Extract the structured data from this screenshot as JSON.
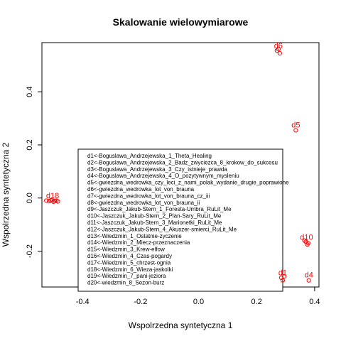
{
  "chart_data": {
    "type": "scatter",
    "title": "Skalowanie wielowymiarowe",
    "xlabel": "Wspolrzedna syntetyczna 1",
    "ylabel": "Wspolrzedna syntetyczna 2",
    "xlim": [
      -0.54,
      0.415
    ],
    "ylim": [
      -0.335,
      0.585
    ],
    "xticks": [
      -0.4,
      -0.2,
      0.0,
      0.2,
      0.4
    ],
    "xtick_labels": [
      "-0.4",
      "-0.2",
      "0.0",
      "0.2",
      "0.4"
    ],
    "yticks": [
      -0.2,
      0.0,
      0.2,
      0.4
    ],
    "ytick_labels": [
      "-0.2",
      "0.0",
      "0.2",
      "0.4"
    ],
    "point_color": "#ff0000",
    "marker": "open-circle",
    "points": [
      {
        "label": "d1",
        "x": 0.29,
        "y": -0.31
      },
      {
        "label": "d2",
        "x": 0.285,
        "y": -0.3
      },
      {
        "label": "d3",
        "x": 0.295,
        "y": -0.295
      },
      {
        "label": "d4",
        "x": 0.38,
        "y": -0.31
      },
      {
        "label": "d5",
        "x": 0.335,
        "y": 0.255
      },
      {
        "label": "d6",
        "x": 0.27,
        "y": 0.555
      },
      {
        "label": "d7",
        "x": 0.275,
        "y": 0.56
      },
      {
        "label": "d8",
        "x": 0.28,
        "y": 0.545
      },
      {
        "label": "d9",
        "x": 0.37,
        "y": -0.165
      },
      {
        "label": "d10",
        "x": 0.375,
        "y": -0.175
      },
      {
        "label": "d11",
        "x": 0.365,
        "y": -0.16
      },
      {
        "label": "d12",
        "x": 0.378,
        "y": -0.17
      },
      {
        "label": "d13",
        "x": -0.525,
        "y": -0.01
      },
      {
        "label": "d14",
        "x": -0.515,
        "y": -0.012
      },
      {
        "label": "d15",
        "x": -0.505,
        "y": -0.008
      },
      {
        "label": "d16",
        "x": -0.495,
        "y": -0.011
      },
      {
        "label": "d17",
        "x": -0.485,
        "y": -0.013
      },
      {
        "label": "d18",
        "x": -0.51,
        "y": -0.009
      },
      {
        "label": "d19",
        "x": -0.5,
        "y": -0.014
      },
      {
        "label": "d20",
        "x": -0.49,
        "y": -0.01
      }
    ],
    "legend_position": "bottom-center",
    "legend": [
      "d1<-Boguslawa_Andrzejewska_1_Theta_Healing",
      "d2<-Boguslawa_Andrzejewska_2_Badz_zwyciezca_8_krokow_do_sukcesu",
      "d3<-Boguslawa_Andrzejewska_3_Czy_istnieje_prawda",
      "d4<-Boguslawa_Andrzejewska_4_O_pozytywnym_mysleniu",
      "d5<-gwiezdna_wedrowka_czy_leci_z_nami_polak_wydanie_drugie_poprawione",
      "d6<-gwiezdna_wedrowka_lot_von_brauna",
      "d7<-gwiezdna_wedrowka_lot_von_brauna_cz_iii",
      "d8<-gwiezdna_wedrowka_lot_von_brauna_ii",
      "d9<-Jaszczuk_Jakub-Stern_1_Foresta-Umbra_RuLit_Me",
      "d10<-Jaszczuk_Jakub-Stern_2_Plan-Sary_RuLit_Me",
      "d11<-Jaszczuk_Jakub-Stern_3_Marionetki_RuLit_Me",
      "d12<-Jaszczuk_Jakub-Stern_4_Akuszer-smierci_RuLit_Me",
      "d13<-Wiedzmin_1_Ostatnie-zyczenie",
      "d14<-Wiedzmin_2_Miecz-przeznaczenia",
      "d15<-Wiedzmin_3_Krew-elfow",
      "d16<-Wiedzmin_4_Czas-pogardy",
      "d17<-Wiedzmin_5_chrzest-ognia",
      "d18<-Wiedzmin_6_Wieza-jaskolki",
      "d19<-Wiedzmin_7_pani-jeziora",
      "d20<-wiedzmin_8_Sezon-burz"
    ],
    "visible_point_labels": [
      {
        "text": "d6",
        "for": [
          "d6",
          "d7",
          "d8"
        ]
      },
      {
        "text": "d5",
        "for": [
          "d5"
        ]
      },
      {
        "text": "d10",
        "for": [
          "d9",
          "d10",
          "d11",
          "d12"
        ]
      },
      {
        "text": "d1",
        "for": [
          "d1",
          "d2",
          "d3"
        ]
      },
      {
        "text": "d4",
        "for": [
          "d4"
        ]
      },
      {
        "text": "d18",
        "for": [
          "d13",
          "d14",
          "d15",
          "d16",
          "d17",
          "d18",
          "d19",
          "d20"
        ]
      }
    ]
  }
}
